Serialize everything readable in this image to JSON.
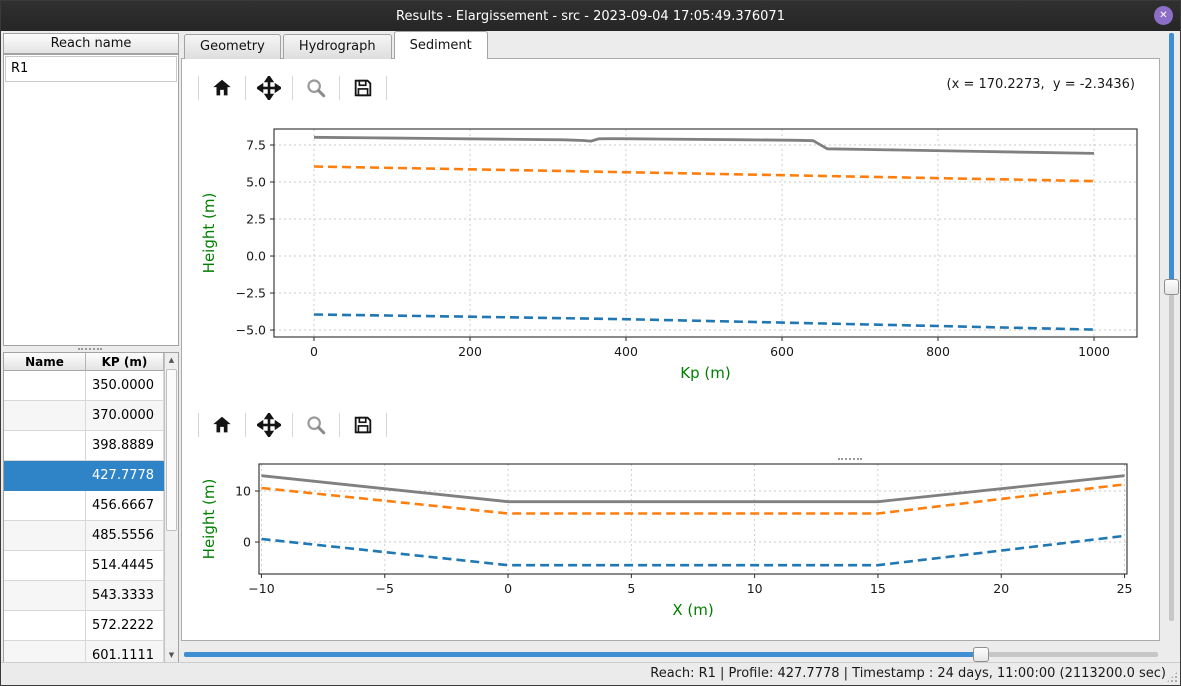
{
  "window": {
    "title": "Results - Elargissement - src - 2023-09-04 17:05:49.376071",
    "close_glyph": "✕"
  },
  "left_panel": {
    "reach_header": "Reach name",
    "reach_items": [
      "R1"
    ],
    "table": {
      "columns": [
        "Name",
        "KP (m)"
      ],
      "selected_index": 3,
      "rows": [
        {
          "name": "",
          "kp": "350.0000"
        },
        {
          "name": "",
          "kp": "370.0000"
        },
        {
          "name": "",
          "kp": "398.8889"
        },
        {
          "name": "",
          "kp": "427.7778"
        },
        {
          "name": "",
          "kp": "456.6667"
        },
        {
          "name": "",
          "kp": "485.5556"
        },
        {
          "name": "",
          "kp": "514.4445"
        },
        {
          "name": "",
          "kp": "543.3333"
        },
        {
          "name": "",
          "kp": "572.2222"
        },
        {
          "name": "",
          "kp": "601.1111"
        }
      ]
    }
  },
  "tabs": [
    {
      "label": "Geometry",
      "active": false
    },
    {
      "label": "Hydrograph",
      "active": false
    },
    {
      "label": "Sediment",
      "active": true
    }
  ],
  "toolbar": {
    "icons": [
      "home-icon",
      "pan-icon",
      "zoom-icon",
      "save-icon"
    ],
    "coordinates_readout": "(x = 170.2273,  y = -2.3436)"
  },
  "icons": {
    "scroll_up": "▲",
    "scroll_down": "▼"
  },
  "chart_data": [
    {
      "type": "line",
      "title": "",
      "xlabel": "Kp (m)",
      "ylabel": "Height (m)",
      "xlim": [
        -51.3,
        1055.1
      ],
      "ylim": [
        -5.47,
        8.58
      ],
      "grid": true,
      "legend": false,
      "xticks": [
        {
          "v": 0,
          "label": "0"
        },
        {
          "v": 200,
          "label": "200"
        },
        {
          "v": 400,
          "label": "400"
        },
        {
          "v": 600,
          "label": "600"
        },
        {
          "v": 800,
          "label": "800"
        },
        {
          "v": 1000,
          "label": "1000"
        }
      ],
      "yticks": [
        {
          "v": 7.5,
          "label": "7.5"
        },
        {
          "v": 5.0,
          "label": "5.0"
        },
        {
          "v": 2.5,
          "label": "2.5"
        },
        {
          "v": 0.0,
          "label": "0.0"
        },
        {
          "v": -2.5,
          "label": "−2.5"
        },
        {
          "v": -5.0,
          "label": "−5.0"
        }
      ],
      "series": [
        {
          "name": "series-gray-solid",
          "color": "#808080",
          "dash": "solid",
          "width": 2.8,
          "points": [
            [
              0,
              8.02
            ],
            [
              80,
              7.98
            ],
            [
              160,
              7.94
            ],
            [
              240,
              7.89
            ],
            [
              320,
              7.85
            ],
            [
              345,
              7.8
            ],
            [
              355,
              7.76
            ],
            [
              365,
              7.92
            ],
            [
              380,
              7.93
            ],
            [
              450,
              7.9
            ],
            [
              540,
              7.86
            ],
            [
              620,
              7.82
            ],
            [
              640,
              7.79
            ],
            [
              658,
              7.24
            ],
            [
              750,
              7.16
            ],
            [
              850,
              7.07
            ],
            [
              1000,
              6.93
            ]
          ]
        },
        {
          "name": "series-orange-dashed",
          "color": "#ff7f0e",
          "dash": "dashed",
          "width": 2.6,
          "points": [
            [
              0,
              6.05
            ],
            [
              250,
              5.81
            ],
            [
              500,
              5.56
            ],
            [
              750,
              5.31
            ],
            [
              1000,
              5.06
            ]
          ]
        },
        {
          "name": "series-blue-dashed",
          "color": "#1f77b4",
          "dash": "dashed",
          "width": 2.6,
          "points": [
            [
              0,
              -3.95
            ],
            [
              200,
              -4.1
            ],
            [
              400,
              -4.27
            ],
            [
              600,
              -4.5
            ],
            [
              800,
              -4.73
            ],
            [
              1000,
              -4.97
            ]
          ]
        }
      ]
    },
    {
      "type": "line",
      "title": "",
      "xlabel": "X (m)",
      "ylabel": "Height (m)",
      "xlim": [
        -10.1,
        25.1
      ],
      "ylim": [
        -6.27,
        15.3
      ],
      "grid": true,
      "legend": false,
      "xticks": [
        {
          "v": -10,
          "label": "−10"
        },
        {
          "v": -5,
          "label": "−5"
        },
        {
          "v": 0,
          "label": "0"
        },
        {
          "v": 5,
          "label": "5"
        },
        {
          "v": 10,
          "label": "10"
        },
        {
          "v": 15,
          "label": "15"
        },
        {
          "v": 20,
          "label": "20"
        },
        {
          "v": 25,
          "label": "25"
        }
      ],
      "yticks": [
        {
          "v": 10,
          "label": "10"
        },
        {
          "v": 0,
          "label": "0"
        }
      ],
      "series": [
        {
          "name": "series-gray-solid",
          "color": "#808080",
          "dash": "solid",
          "width": 2.8,
          "points": [
            [
              -10,
              13.0
            ],
            [
              0,
              7.9
            ],
            [
              15,
              7.9
            ],
            [
              25,
              13.0
            ]
          ]
        },
        {
          "name": "series-orange-dashed",
          "color": "#ff7f0e",
          "dash": "dashed",
          "width": 2.6,
          "points": [
            [
              -10,
              10.6
            ],
            [
              0,
              5.6
            ],
            [
              15,
              5.6
            ],
            [
              25,
              11.3
            ]
          ]
        },
        {
          "name": "series-blue-dashed",
          "color": "#1f77b4",
          "dash": "dashed",
          "width": 2.6,
          "points": [
            [
              -10,
              0.6
            ],
            [
              0,
              -4.55
            ],
            [
              15,
              -4.55
            ],
            [
              25,
              1.2
            ]
          ]
        }
      ]
    }
  ],
  "sliders": {
    "horizontal_timeline": {
      "value_pct": 81.8
    },
    "vertical": {
      "value_pct": 43.2
    }
  },
  "status_bar": {
    "text": "Reach: R1 | Profile: 427.7778 | Timestamp : 24 days, 11:00:00 (2113200.0 sec)"
  },
  "colors": {
    "selection_blue": "#2f84c7",
    "slider_blue": "#3d8ed2",
    "axis_label_green": "#008000",
    "series_gray": "#808080",
    "series_orange": "#ff7f0e",
    "series_blue": "#1f77b4"
  }
}
